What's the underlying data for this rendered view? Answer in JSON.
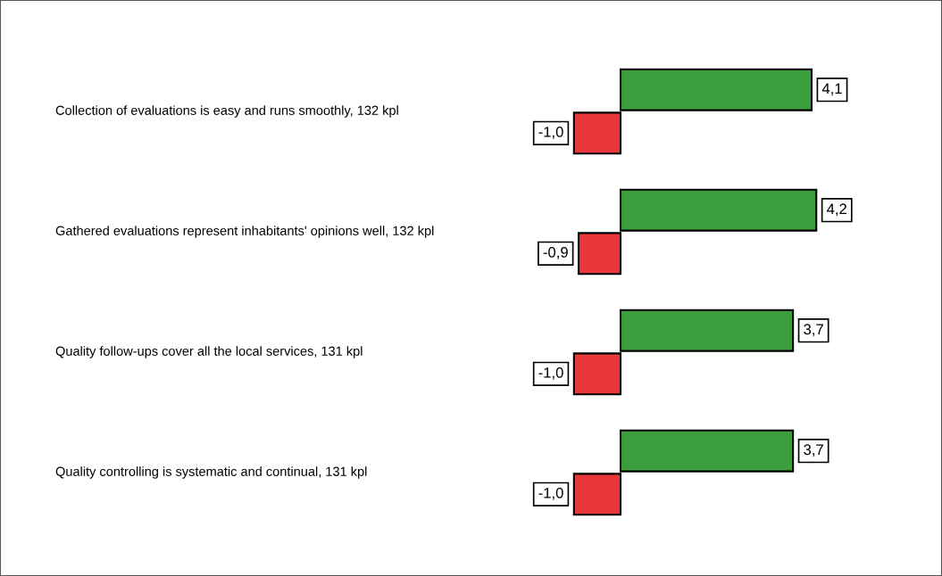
{
  "chart_data": {
    "type": "bar",
    "orientation": "horizontal",
    "categories": [
      "Collection of evaluations is easy and runs smoothly, 132 kpl",
      "Gathered evaluations represent inhabitants' opinions well, 132 kpl",
      "Quality follow-ups cover all the local services, 131 kpl",
      "Quality controlling is systematic and continual, 131 kpl"
    ],
    "series": [
      {
        "color": "#3c9d3c",
        "values": [
          4.1,
          4.2,
          3.7,
          3.7
        ],
        "value_labels": [
          "4,1",
          "4,2",
          "3,7",
          "3,7"
        ]
      },
      {
        "color": "#e8383a",
        "values": [
          -1.0,
          -0.9,
          -1.0,
          -1.0
        ],
        "value_labels": [
          "-1,0",
          "-0,9",
          "-1,0",
          "-1,0"
        ]
      }
    ]
  }
}
